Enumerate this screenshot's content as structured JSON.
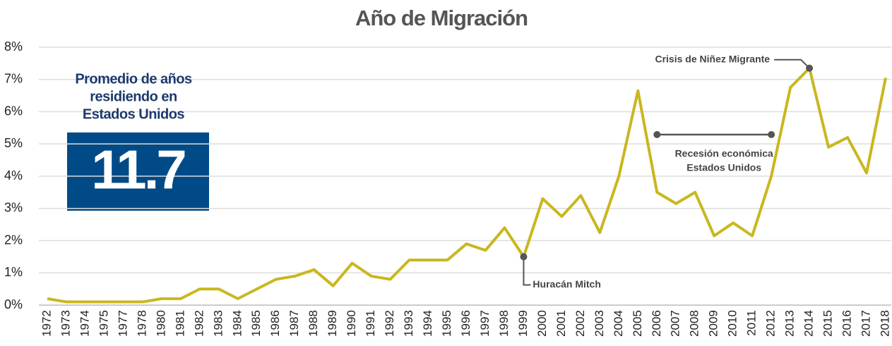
{
  "chart_data": {
    "type": "line",
    "title": "Año de Migración",
    "categories": [
      "1972",
      "1973",
      "1974",
      "1975",
      "1977",
      "1978",
      "1980",
      "1981",
      "1982",
      "1983",
      "1984",
      "1985",
      "1986",
      "1987",
      "1988",
      "1989",
      "1990",
      "1991",
      "1992",
      "1993",
      "1994",
      "1995",
      "1996",
      "1997",
      "1998",
      "1999",
      "2000",
      "2001",
      "2002",
      "2003",
      "2004",
      "2005",
      "2006",
      "2007",
      "2008",
      "2009",
      "2010",
      "2011",
      "2012",
      "2013",
      "2014",
      "2015",
      "2016",
      "2017",
      "2018"
    ],
    "series": [
      {
        "name": "Año de Migración",
        "color": "#c9b71f",
        "values": [
          0.2,
          0.1,
          0.1,
          0.1,
          0.1,
          0.1,
          0.2,
          0.2,
          0.5,
          0.5,
          0.2,
          0.5,
          0.8,
          0.9,
          1.1,
          0.6,
          1.3,
          0.9,
          0.8,
          1.4,
          1.4,
          1.4,
          1.9,
          1.7,
          2.4,
          1.5,
          3.3,
          2.75,
          3.4,
          2.25,
          4.0,
          6.65,
          3.5,
          3.15,
          3.5,
          2.15,
          2.55,
          2.15,
          4.0,
          6.75,
          7.35,
          4.9,
          5.2,
          4.1,
          7.05
        ]
      }
    ],
    "ylim": [
      0,
      8
    ],
    "yticks": [
      {
        "value": 0,
        "label": "0%"
      },
      {
        "value": 1,
        "label": "1%"
      },
      {
        "value": 2,
        "label": "2%"
      },
      {
        "value": 3,
        "label": "3%"
      },
      {
        "value": 4,
        "label": "4%"
      },
      {
        "value": 5,
        "label": "5%"
      },
      {
        "value": 6,
        "label": "6%"
      },
      {
        "value": 7,
        "label": "7%"
      },
      {
        "value": 8,
        "label": "8%"
      }
    ],
    "grid": true,
    "annotations": [
      {
        "text": "Crisis de Niñez Migrante",
        "x": "2014"
      },
      {
        "text": "Huracán Mitch",
        "x": "1999"
      },
      {
        "lines": [
          "Recesión económica",
          "Estados Unidos"
        ],
        "from": "2006",
        "to": "2012"
      }
    ],
    "summary": {
      "lines": [
        "Promedio de años",
        "residiendo en",
        "Estados Unidos"
      ],
      "value": 11.7
    }
  }
}
